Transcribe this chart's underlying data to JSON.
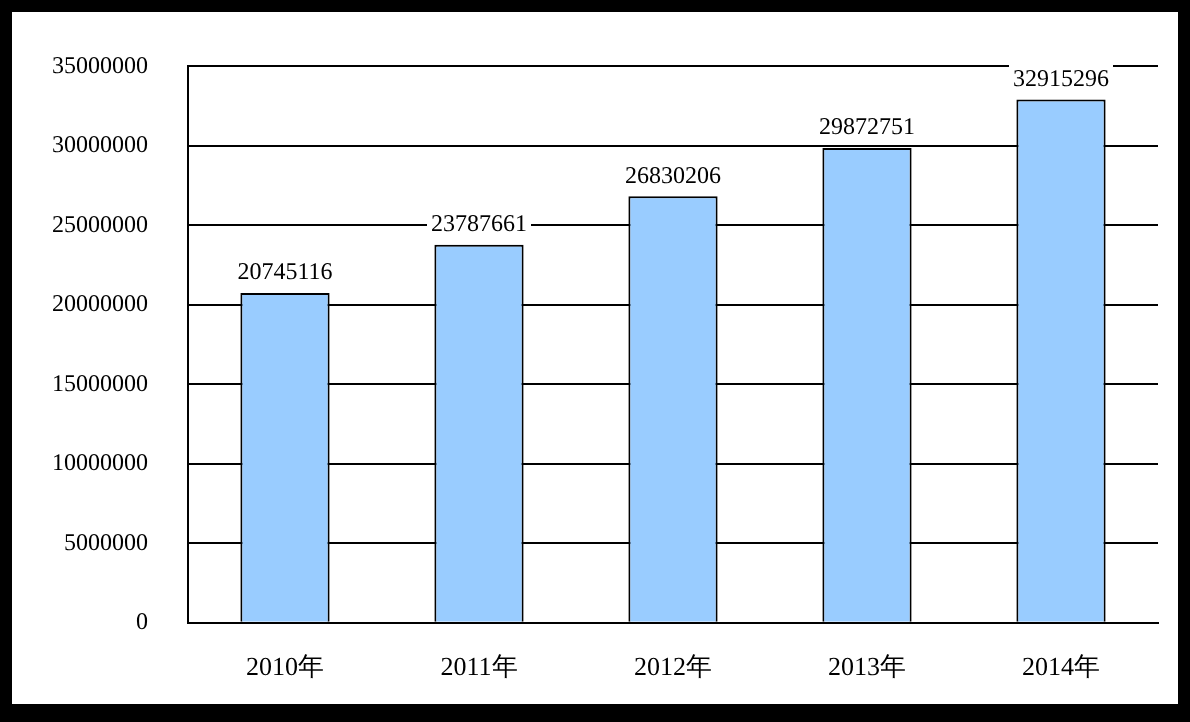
{
  "chart_data": {
    "type": "bar",
    "categories": [
      "2010年",
      "2011年",
      "2012年",
      "2013年",
      "2014年"
    ],
    "values": [
      20745116,
      23787661,
      26830206,
      29872751,
      32915296
    ],
    "color": "#99ccff",
    "data_labels": true,
    "grid": "y",
    "legend": false,
    "ylim": [
      0,
      35000000
    ],
    "yticks": [
      0,
      5000000,
      10000000,
      15000000,
      20000000,
      25000000,
      30000000,
      35000000
    ]
  }
}
